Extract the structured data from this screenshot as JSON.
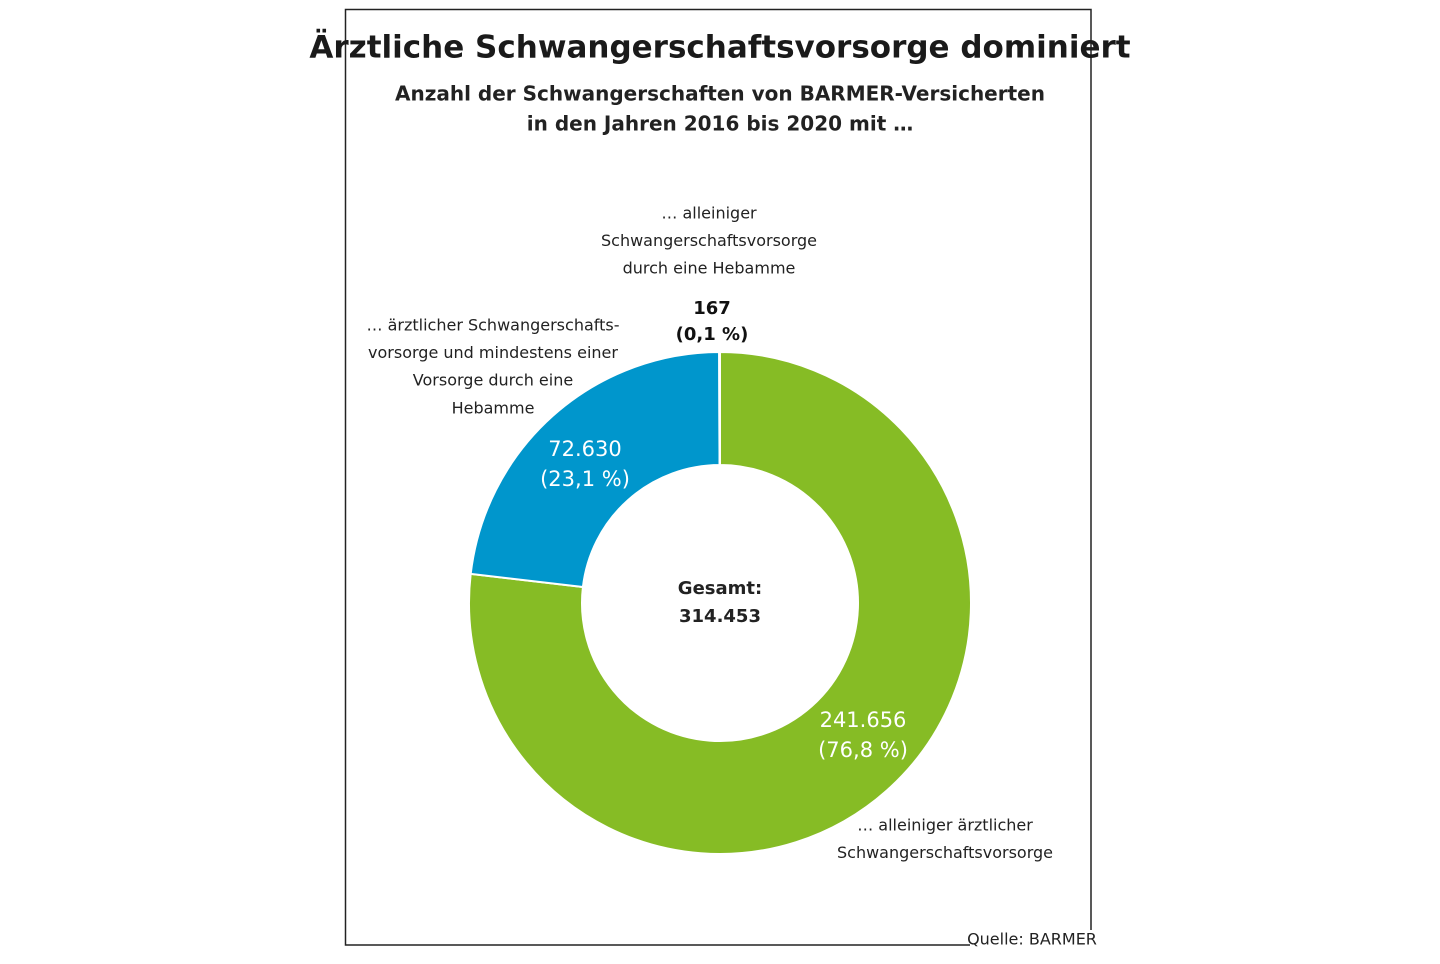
{
  "chart_data": {
    "type": "pie",
    "donut": true,
    "title": "Ärztliche Schwangerschaftsvorsorge dominiert",
    "subtitle": [
      "Anzahl der Schwangerschaften von BARMER-Versicherten",
      "in den Jahren 2016 bis 2020 mit …"
    ],
    "categories": [
      [
        "… alleiniger ärztlicher",
        "Schwangerschaftsvorsorge"
      ],
      [
        "… ärztlicher Schwangerschafts-",
        "vorsorge und mindestens einer",
        "Vorsorge durch eine",
        "Hebamme"
      ],
      [
        "… alleiniger",
        "Schwangerschaftsvorsorge",
        "durch eine Hebamme"
      ]
    ],
    "values": [
      241656,
      72630,
      167
    ],
    "value_labels": [
      "241.656",
      "72.630",
      "167"
    ],
    "share_labels": [
      "(76,8 %)",
      "(23,1 %)",
      "(0,1 %)"
    ],
    "colors": [
      "#86bc25",
      "#0096cc",
      "#1f2a22"
    ],
    "center_label": "Gesamt:",
    "total": {
      "value": 314453,
      "label": "314.453"
    },
    "source": "Quelle: BARMER"
  }
}
